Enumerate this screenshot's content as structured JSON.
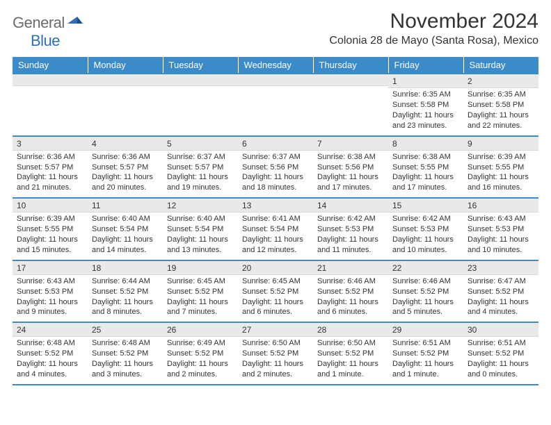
{
  "logo": {
    "general": "General",
    "blue": "Blue"
  },
  "title": "November 2024",
  "location": "Colonia 28 de Mayo (Santa Rosa), Mexico",
  "colors": {
    "header_bg": "#3b8bc9",
    "header_text": "#ffffff",
    "daynum_bg": "#e9e9e9",
    "border": "#3b8bc9",
    "text": "#333333",
    "logo_gray": "#6b6b6b",
    "logo_blue": "#2f6fb2"
  },
  "weekdays": [
    "Sunday",
    "Monday",
    "Tuesday",
    "Wednesday",
    "Thursday",
    "Friday",
    "Saturday"
  ],
  "label_sunrise": "Sunrise: ",
  "label_sunset": "Sunset: ",
  "label_daylight": "Daylight: ",
  "weeks": [
    [
      null,
      null,
      null,
      null,
      null,
      {
        "n": "1",
        "sunrise": "6:35 AM",
        "sunset": "5:58 PM",
        "daylight": "11 hours and 23 minutes."
      },
      {
        "n": "2",
        "sunrise": "6:35 AM",
        "sunset": "5:58 PM",
        "daylight": "11 hours and 22 minutes."
      }
    ],
    [
      {
        "n": "3",
        "sunrise": "6:36 AM",
        "sunset": "5:57 PM",
        "daylight": "11 hours and 21 minutes."
      },
      {
        "n": "4",
        "sunrise": "6:36 AM",
        "sunset": "5:57 PM",
        "daylight": "11 hours and 20 minutes."
      },
      {
        "n": "5",
        "sunrise": "6:37 AM",
        "sunset": "5:57 PM",
        "daylight": "11 hours and 19 minutes."
      },
      {
        "n": "6",
        "sunrise": "6:37 AM",
        "sunset": "5:56 PM",
        "daylight": "11 hours and 18 minutes."
      },
      {
        "n": "7",
        "sunrise": "6:38 AM",
        "sunset": "5:56 PM",
        "daylight": "11 hours and 17 minutes."
      },
      {
        "n": "8",
        "sunrise": "6:38 AM",
        "sunset": "5:55 PM",
        "daylight": "11 hours and 17 minutes."
      },
      {
        "n": "9",
        "sunrise": "6:39 AM",
        "sunset": "5:55 PM",
        "daylight": "11 hours and 16 minutes."
      }
    ],
    [
      {
        "n": "10",
        "sunrise": "6:39 AM",
        "sunset": "5:55 PM",
        "daylight": "11 hours and 15 minutes."
      },
      {
        "n": "11",
        "sunrise": "6:40 AM",
        "sunset": "5:54 PM",
        "daylight": "11 hours and 14 minutes."
      },
      {
        "n": "12",
        "sunrise": "6:40 AM",
        "sunset": "5:54 PM",
        "daylight": "11 hours and 13 minutes."
      },
      {
        "n": "13",
        "sunrise": "6:41 AM",
        "sunset": "5:54 PM",
        "daylight": "11 hours and 12 minutes."
      },
      {
        "n": "14",
        "sunrise": "6:42 AM",
        "sunset": "5:53 PM",
        "daylight": "11 hours and 11 minutes."
      },
      {
        "n": "15",
        "sunrise": "6:42 AM",
        "sunset": "5:53 PM",
        "daylight": "11 hours and 10 minutes."
      },
      {
        "n": "16",
        "sunrise": "6:43 AM",
        "sunset": "5:53 PM",
        "daylight": "11 hours and 10 minutes."
      }
    ],
    [
      {
        "n": "17",
        "sunrise": "6:43 AM",
        "sunset": "5:53 PM",
        "daylight": "11 hours and 9 minutes."
      },
      {
        "n": "18",
        "sunrise": "6:44 AM",
        "sunset": "5:52 PM",
        "daylight": "11 hours and 8 minutes."
      },
      {
        "n": "19",
        "sunrise": "6:45 AM",
        "sunset": "5:52 PM",
        "daylight": "11 hours and 7 minutes."
      },
      {
        "n": "20",
        "sunrise": "6:45 AM",
        "sunset": "5:52 PM",
        "daylight": "11 hours and 6 minutes."
      },
      {
        "n": "21",
        "sunrise": "6:46 AM",
        "sunset": "5:52 PM",
        "daylight": "11 hours and 6 minutes."
      },
      {
        "n": "22",
        "sunrise": "6:46 AM",
        "sunset": "5:52 PM",
        "daylight": "11 hours and 5 minutes."
      },
      {
        "n": "23",
        "sunrise": "6:47 AM",
        "sunset": "5:52 PM",
        "daylight": "11 hours and 4 minutes."
      }
    ],
    [
      {
        "n": "24",
        "sunrise": "6:48 AM",
        "sunset": "5:52 PM",
        "daylight": "11 hours and 4 minutes."
      },
      {
        "n": "25",
        "sunrise": "6:48 AM",
        "sunset": "5:52 PM",
        "daylight": "11 hours and 3 minutes."
      },
      {
        "n": "26",
        "sunrise": "6:49 AM",
        "sunset": "5:52 PM",
        "daylight": "11 hours and 2 minutes."
      },
      {
        "n": "27",
        "sunrise": "6:50 AM",
        "sunset": "5:52 PM",
        "daylight": "11 hours and 2 minutes."
      },
      {
        "n": "28",
        "sunrise": "6:50 AM",
        "sunset": "5:52 PM",
        "daylight": "11 hours and 1 minute."
      },
      {
        "n": "29",
        "sunrise": "6:51 AM",
        "sunset": "5:52 PM",
        "daylight": "11 hours and 1 minute."
      },
      {
        "n": "30",
        "sunrise": "6:51 AM",
        "sunset": "5:52 PM",
        "daylight": "11 hours and 0 minutes."
      }
    ]
  ]
}
